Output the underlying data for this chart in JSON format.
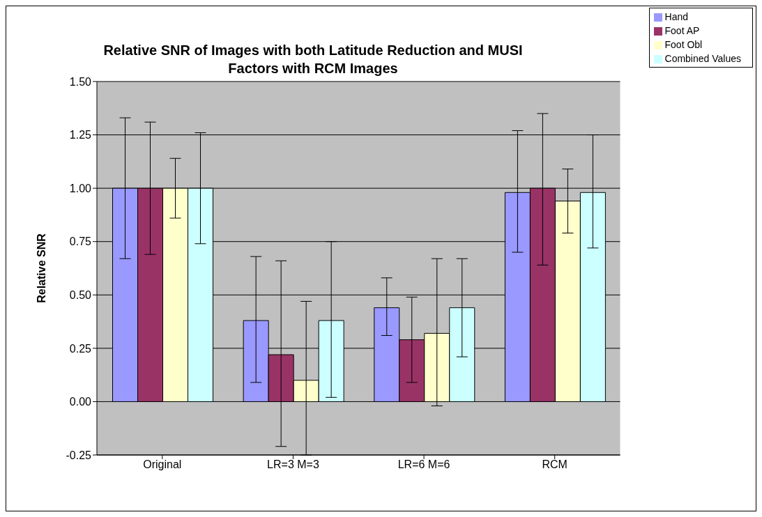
{
  "chart_data": {
    "type": "bar",
    "title": "Relative SNR of Images with both Latitude Reduction and MUSI Factors with RCM Images",
    "ylabel": "Relative SNR",
    "categories": [
      "Original",
      "LR=3 M=3",
      "LR=6 M=6",
      "RCM"
    ],
    "series": [
      {
        "name": "Hand",
        "color": "#9999ff",
        "values": [
          1.0,
          0.38,
          0.44,
          0.98
        ],
        "errors": [
          [
            0.67,
            1.33
          ],
          [
            0.09,
            0.68
          ],
          [
            0.31,
            0.58
          ],
          [
            0.7,
            1.27
          ]
        ]
      },
      {
        "name": "Foot AP",
        "color": "#993366",
        "values": [
          1.0,
          0.22,
          0.29,
          1.0
        ],
        "errors": [
          [
            0.69,
            1.31
          ],
          [
            -0.21,
            0.66
          ],
          [
            0.09,
            0.49
          ],
          [
            0.64,
            1.35
          ]
        ]
      },
      {
        "name": "Foot Obl",
        "color": "#ffffcc",
        "values": [
          1.0,
          0.1,
          0.32,
          0.94
        ],
        "errors": [
          [
            0.86,
            1.14
          ],
          [
            -0.25,
            0.47
          ],
          [
            -0.02,
            0.67
          ],
          [
            0.79,
            1.09
          ]
        ]
      },
      {
        "name": "Combined Values",
        "color": "#ccffff",
        "values": [
          1.0,
          0.38,
          0.44,
          0.98
        ],
        "errors": [
          [
            0.74,
            1.26
          ],
          [
            0.02,
            0.75
          ],
          [
            0.21,
            0.67
          ],
          [
            0.72,
            1.25
          ]
        ]
      }
    ],
    "ylim": [
      -0.25,
      1.5
    ],
    "yticks": [
      {
        "value": -0.25,
        "label": "-0.25"
      },
      {
        "value": 0,
        "label": "0.00"
      },
      {
        "value": 0.25,
        "label": "0.25"
      },
      {
        "value": 0.5,
        "label": "0.50"
      },
      {
        "value": 0.75,
        "label": "0.75"
      },
      {
        "value": 1,
        "label": "1.00"
      },
      {
        "value": 1.25,
        "label": "1.25"
      },
      {
        "value": 1.5,
        "label": "1.50"
      }
    ],
    "grid": "y",
    "legend": "top right"
  }
}
